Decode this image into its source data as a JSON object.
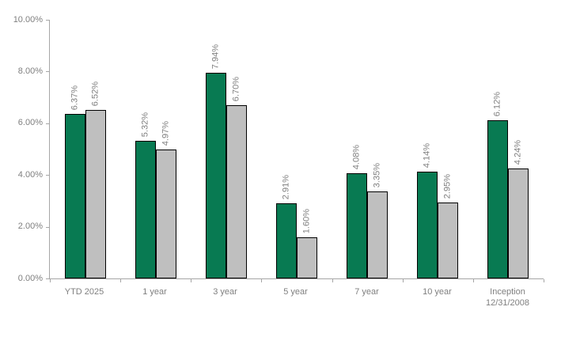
{
  "chart_data": {
    "type": "bar",
    "title": "",
    "xlabel": "",
    "ylabel": "",
    "categories": [
      "YTD 2025",
      "1 year",
      "3 year",
      "5 year",
      "7 year",
      "10 year",
      "Inception\n12/31/2008"
    ],
    "series": [
      {
        "name": "series-1-green",
        "color": "#087a52",
        "values": [
          6.37,
          5.32,
          7.94,
          2.91,
          4.08,
          4.14,
          6.12
        ]
      },
      {
        "name": "series-2-gray",
        "color": "#bfbfbf",
        "values": [
          6.52,
          4.97,
          6.7,
          1.6,
          3.35,
          2.95,
          4.24
        ]
      }
    ],
    "data_labels": [
      [
        "6.37%",
        "5.32%",
        "7.94%",
        "2.91%",
        "4.08%",
        "4.14%",
        "6.12%"
      ],
      [
        "6.52%",
        "4.97%",
        "6.70%",
        "1.60%",
        "3.35%",
        "2.95%",
        "4.24%"
      ]
    ],
    "ylim": [
      0,
      10
    ],
    "ytick_step": 2,
    "ytick_labels": [
      "0.00%",
      "2.00%",
      "4.00%",
      "6.00%",
      "8.00%",
      "10.00%"
    ],
    "grid": false,
    "legend": "none",
    "bar_border_color": "#000000",
    "axis_line_color": "#a6a6a6",
    "label_text_color": "#7f7f7f"
  }
}
